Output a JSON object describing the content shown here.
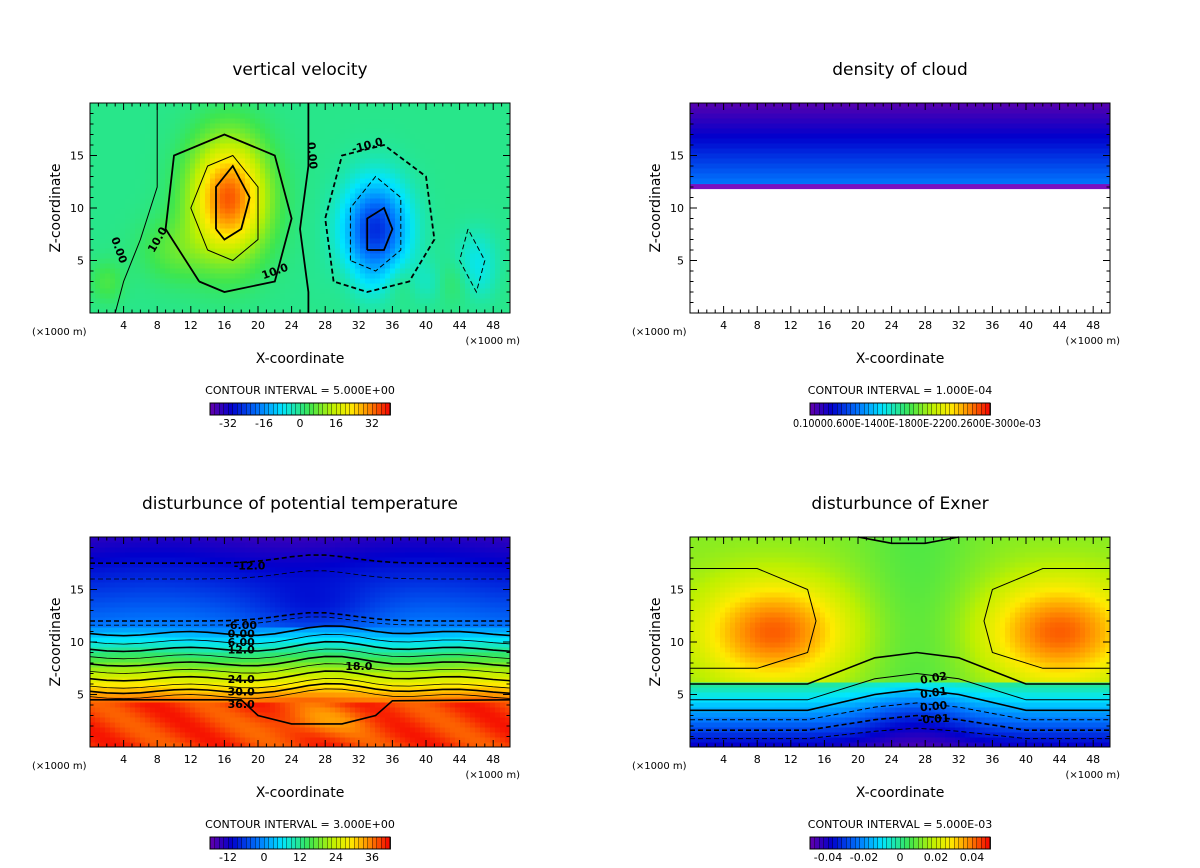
{
  "chart_data": [
    {
      "id": "w",
      "type": "heatmap",
      "title": "vertical velocity",
      "xlabel": "X-coordinate",
      "ylabel": "Z-coordinate",
      "x_unit": "(×1000 m)",
      "y_unit": "(×1000 m)",
      "xlim": [
        0,
        50
      ],
      "ylim": [
        0,
        20
      ],
      "x_ticks": [
        4,
        8,
        12,
        16,
        20,
        24,
        28,
        32,
        36,
        40,
        44,
        48
      ],
      "y_ticks": [
        5,
        10,
        15
      ],
      "contour_interval": "CONTOUR INTERVAL = 5.000E+00",
      "colorbar": {
        "min": -40,
        "max": 40,
        "labels": [
          "-32",
          "-16",
          "0",
          "16",
          "32"
        ],
        "label_values": [
          -32,
          -16,
          0,
          16,
          32
        ]
      },
      "contour_labels": [
        "0.00",
        "10.0",
        "10.0",
        "0.00",
        "-10.0"
      ]
    },
    {
      "id": "cloud",
      "type": "heatmap",
      "title": "density of cloud",
      "xlabel": "X-coordinate",
      "ylabel": "Z-coordinate",
      "x_unit": "(×1000 m)",
      "y_unit": "(×1000 m)",
      "xlim": [
        0,
        50
      ],
      "ylim": [
        0,
        20
      ],
      "x_ticks": [
        4,
        8,
        12,
        16,
        20,
        24,
        28,
        32,
        36,
        40,
        44,
        48
      ],
      "y_ticks": [
        5,
        10,
        15
      ],
      "contour_interval": "CONTOUR INTERVAL = 1.000E-04",
      "colorbar": {
        "min": 0,
        "max": 1,
        "labels_text": "0.10000.600E-1400E-1800E-2200.2600E-3000e-03"
      },
      "cloud_base_km": 11.8
    },
    {
      "id": "theta",
      "type": "heatmap",
      "title": "disturbunce of potential temperature",
      "xlabel": "X-coordinate",
      "ylabel": "Z-coordinate",
      "x_unit": "(×1000 m)",
      "y_unit": "(×1000 m)",
      "xlim": [
        0,
        50
      ],
      "ylim": [
        0,
        20
      ],
      "x_ticks": [
        4,
        8,
        12,
        16,
        20,
        24,
        28,
        32,
        36,
        40,
        44,
        48
      ],
      "y_ticks": [
        5,
        10,
        15
      ],
      "contour_interval": "CONTOUR INTERVAL = 3.000E+00",
      "colorbar": {
        "min": -18,
        "max": 42,
        "labels": [
          "-12",
          "0",
          "12",
          "24",
          "36"
        ],
        "label_values": [
          -12,
          0,
          12,
          24,
          36
        ]
      },
      "contour_labels": [
        "-12.0",
        "-6.00",
        "0.00",
        "6.00",
        "12.0",
        "18.0",
        "24.0",
        "30.0",
        "36.0"
      ]
    },
    {
      "id": "exner",
      "type": "heatmap",
      "title": "disturbunce of Exner",
      "xlabel": "X-coordinate",
      "ylabel": "Z-coordinate",
      "x_unit": "(×1000 m)",
      "y_unit": "(×1000 m)",
      "xlim": [
        0,
        50
      ],
      "ylim": [
        0,
        20
      ],
      "x_ticks": [
        4,
        8,
        12,
        16,
        20,
        24,
        28,
        32,
        36,
        40,
        44,
        48
      ],
      "y_ticks": [
        5,
        10,
        15
      ],
      "contour_interval": "CONTOUR INTERVAL = 5.000E-03",
      "colorbar": {
        "min": -0.05,
        "max": 0.05,
        "labels": [
          "-0.04",
          "-0.02",
          "0",
          "0.02",
          "0.04"
        ],
        "label_values": [
          -0.04,
          -0.02,
          0,
          0.02,
          0.04
        ]
      },
      "contour_labels": [
        "0.02",
        "0.01",
        "0.00",
        "-0.01"
      ]
    }
  ]
}
